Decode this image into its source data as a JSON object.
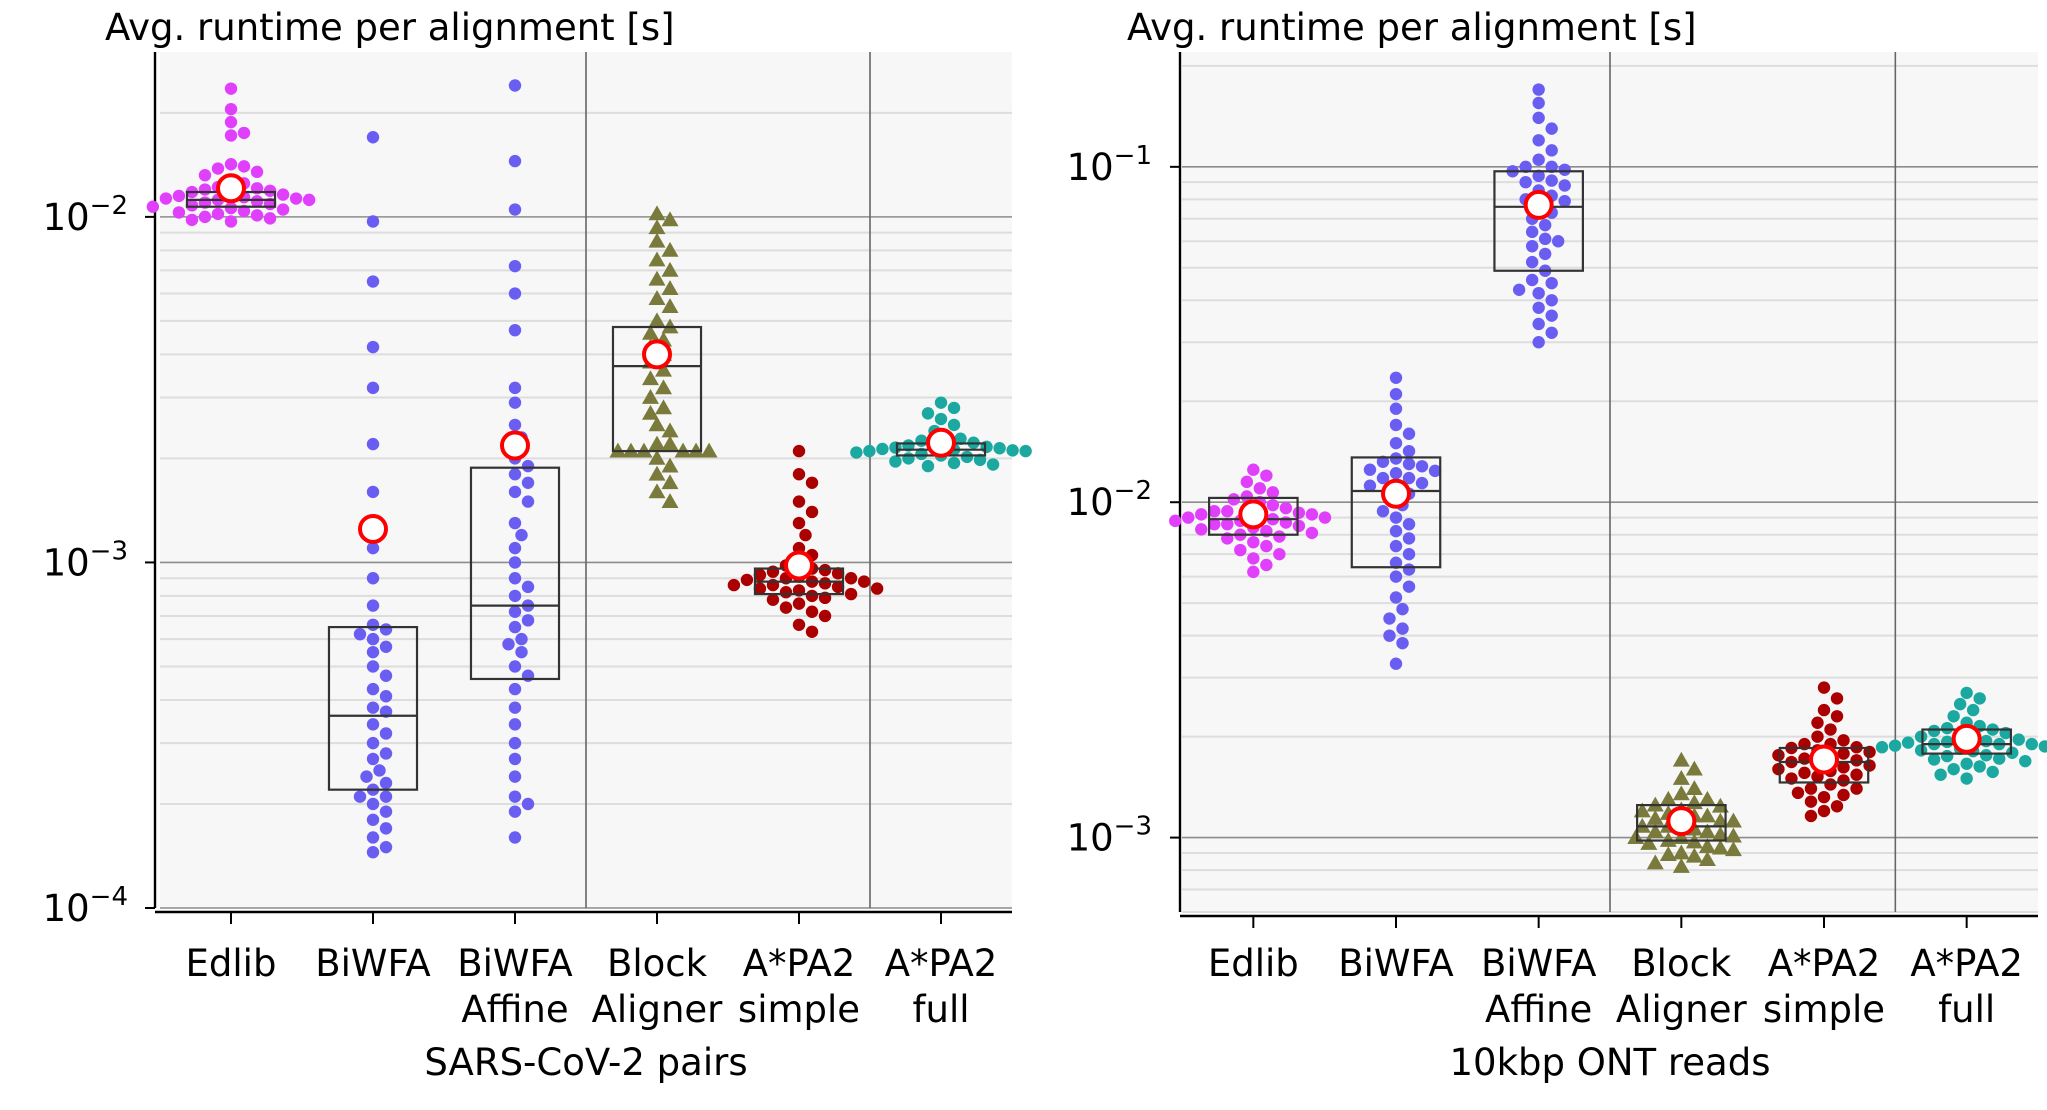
{
  "colors": {
    "panel_bg": "#f7f7f7",
    "grid_major": "#8c8c8c",
    "grid_minor": "#dddddd",
    "box_stroke": "#333333",
    "mean_fill": "#ffffff",
    "mean_stroke": "#ff0000"
  },
  "chart_data": [
    {
      "type": "swarm-box",
      "ylabel": "Avg. runtime per alignment [s]",
      "xlabel": "SARS-CoV-2 pairs",
      "yscale": "log",
      "ylim": [
        0.0001,
        0.03
      ],
      "yticks": [
        {
          "base": "10",
          "exp": "−4",
          "value": 0.0001
        },
        {
          "base": "10",
          "exp": "−3",
          "value": 0.001
        },
        {
          "base": "10",
          "exp": "−2",
          "value": 0.01
        }
      ],
      "group_separators_after": [
        3,
        5
      ],
      "categories": [
        {
          "label_lines": [
            "Edlib"
          ],
          "color": "#e040fb",
          "marker": "circle",
          "median": 0.0112,
          "q1": 0.0107,
          "q3": 0.0118,
          "mean": 0.0121,
          "points": [
            0.0235,
            0.0205,
            0.0188,
            0.0175,
            0.0172,
            0.0142,
            0.014,
            0.0138,
            0.0135,
            0.0132,
            0.0128,
            0.0125,
            0.0122,
            0.012,
            0.0118,
            0.0116,
            0.0115,
            0.0114,
            0.0113,
            0.0112,
            0.0111,
            0.011,
            0.0109,
            0.0108,
            0.0107,
            0.0106,
            0.0105,
            0.0103,
            0.0102,
            0.0101,
            0.01,
            0.0098,
            0.0097,
            0.0099,
            0.0104,
            0.0112,
            0.0113,
            0.0116,
            0.0119,
            0.0121
          ]
        },
        {
          "label_lines": [
            "BiWFA"
          ],
          "color": "#6a5ef2",
          "marker": "circle",
          "median": 0.00036,
          "q1": 0.00022,
          "q3": 0.00065,
          "mean": 0.00125,
          "points": [
            0.017,
            0.0097,
            0.0065,
            0.0042,
            0.0032,
            0.0022,
            0.0016,
            0.0011,
            0.0009,
            0.00075,
            0.00066,
            0.00064,
            0.00062,
            0.0006,
            0.00057,
            0.00055,
            0.0005,
            0.00047,
            0.00043,
            0.00041,
            0.00038,
            0.00037,
            0.00034,
            0.00032,
            0.0003,
            0.00028,
            0.00027,
            0.00025,
            0.00024,
            0.00023,
            0.00022,
            0.00021,
            0.0002,
            0.00019,
            0.00018,
            0.00017,
            0.00016,
            0.00015,
            0.000145,
            0.00021
          ]
        },
        {
          "label_lines": [
            "BiWFA",
            "Affine"
          ],
          "color": "#6a5ef2",
          "marker": "circle",
          "median": 0.00075,
          "q1": 0.00046,
          "q3": 0.00188,
          "mean": 0.00218,
          "points": [
            0.024,
            0.0145,
            0.0105,
            0.0072,
            0.006,
            0.0047,
            0.0032,
            0.0029,
            0.0025,
            0.0023,
            0.002,
            0.0019,
            0.0018,
            0.0017,
            0.0016,
            0.0015,
            0.0013,
            0.0012,
            0.0011,
            0.001,
            0.0009,
            0.00085,
            0.0008,
            0.00075,
            0.00072,
            0.00068,
            0.00065,
            0.0006,
            0.00058,
            0.00055,
            0.0005,
            0.00047,
            0.00043,
            0.00038,
            0.00034,
            0.0003,
            0.00027,
            0.00024,
            0.00021,
            0.00019,
            0.00016,
            0.0002
          ]
        },
        {
          "label_lines": [
            "Block",
            "Aligner"
          ],
          "color": "#7a7a3c",
          "marker": "triangle",
          "median": 0.0037,
          "q1": 0.0021,
          "q3": 0.0048,
          "mean": 0.004,
          "points": [
            0.0102,
            0.0098,
            0.0093,
            0.0085,
            0.008,
            0.0075,
            0.007,
            0.0066,
            0.0062,
            0.0058,
            0.0055,
            0.005,
            0.0048,
            0.0046,
            0.0044,
            0.0042,
            0.004,
            0.0038,
            0.0036,
            0.0034,
            0.0032,
            0.003,
            0.0028,
            0.0027,
            0.0025,
            0.0024,
            0.0022,
            0.0021,
            0.0021,
            0.0021,
            0.0021,
            0.002,
            0.0019,
            0.0018,
            0.0017,
            0.0016,
            0.0015,
            0.0022,
            0.0021,
            0.0021
          ]
        },
        {
          "label_lines": [
            "A*PA2",
            "simple"
          ],
          "color": "#aa0000",
          "marker": "circle",
          "median": 0.00088,
          "q1": 0.00081,
          "q3": 0.00096,
          "mean": 0.00098,
          "points": [
            0.0021,
            0.0018,
            0.0017,
            0.0015,
            0.0014,
            0.0013,
            0.0012,
            0.0011,
            0.00105,
            0.001,
            0.00098,
            0.00096,
            0.00095,
            0.00094,
            0.00093,
            0.00092,
            0.00091,
            0.0009,
            0.00089,
            0.00088,
            0.00087,
            0.00086,
            0.00085,
            0.00084,
            0.00083,
            0.00082,
            0.00081,
            0.0008,
            0.00079,
            0.00078,
            0.00076,
            0.00074,
            0.00072,
            0.0007,
            0.00066,
            0.00063,
            0.00088,
            0.00086,
            0.00084,
            0.0009
          ]
        },
        {
          "label_lines": [
            "A*PA2",
            "full"
          ],
          "color": "#1aa8a0",
          "marker": "circle",
          "median": 0.00212,
          "q1": 0.00204,
          "q3": 0.00221,
          "mean": 0.00222,
          "points": [
            0.0029,
            0.0028,
            0.0027,
            0.0026,
            0.0025,
            0.0024,
            0.0023,
            0.00228,
            0.00225,
            0.00222,
            0.0022,
            0.00218,
            0.00215,
            0.00213,
            0.00211,
            0.0021,
            0.00208,
            0.00206,
            0.00204,
            0.00202,
            0.002,
            0.00198,
            0.00196,
            0.00194,
            0.00192,
            0.0019,
            0.00212,
            0.00214,
            0.00216,
            0.0021
          ]
        }
      ]
    },
    {
      "type": "swarm-box",
      "ylabel": "Avg. runtime per alignment [s]",
      "xlabel": "10kbp ONT reads",
      "yscale": "log",
      "ylim": [
        0.0006,
        0.22
      ],
      "yticks": [
        {
          "base": "10",
          "exp": "−3",
          "value": 0.001
        },
        {
          "base": "10",
          "exp": "−2",
          "value": 0.01
        },
        {
          "base": "10",
          "exp": "−1",
          "value": 0.1
        }
      ],
      "group_separators_after": [
        3,
        5
      ],
      "categories": [
        {
          "label_lines": [
            "Edlib"
          ],
          "color": "#e040fb",
          "marker": "circle",
          "median": 0.0089,
          "q1": 0.008,
          "q3": 0.0103,
          "mean": 0.0092,
          "points": [
            0.0125,
            0.012,
            0.0115,
            0.011,
            0.0107,
            0.0104,
            0.0102,
            0.01,
            0.0098,
            0.0096,
            0.0094,
            0.0093,
            0.0092,
            0.0091,
            0.009,
            0.0089,
            0.0088,
            0.0087,
            0.0086,
            0.0085,
            0.0084,
            0.0083,
            0.0082,
            0.0081,
            0.008,
            0.0079,
            0.0078,
            0.0076,
            0.0074,
            0.0072,
            0.007,
            0.0068,
            0.0065,
            0.0062,
            0.009,
            0.0088,
            0.0092,
            0.0094,
            0.0086,
            0.0095
          ]
        },
        {
          "label_lines": [
            "BiWFA"
          ],
          "color": "#6a5ef2",
          "marker": "circle",
          "median": 0.0108,
          "q1": 0.0064,
          "q3": 0.0136,
          "mean": 0.0106,
          "points": [
            0.0235,
            0.021,
            0.019,
            0.017,
            0.016,
            0.015,
            0.0142,
            0.0135,
            0.013,
            0.0125,
            0.0122,
            0.0118,
            0.0114,
            0.011,
            0.0106,
            0.0102,
            0.0098,
            0.0094,
            0.009,
            0.0086,
            0.0082,
            0.0078,
            0.0074,
            0.007,
            0.0066,
            0.0063,
            0.006,
            0.0056,
            0.0052,
            0.0048,
            0.0045,
            0.0042,
            0.004,
            0.0038,
            0.0033,
            0.0112,
            0.0118,
            0.0124,
            0.0128,
            0.0132
          ]
        },
        {
          "label_lines": [
            "BiWFA",
            "Affine"
          ],
          "color": "#6a5ef2",
          "marker": "circle",
          "median": 0.076,
          "q1": 0.049,
          "q3": 0.097,
          "mean": 0.077,
          "points": [
            0.17,
            0.155,
            0.14,
            0.13,
            0.12,
            0.112,
            0.105,
            0.1,
            0.097,
            0.094,
            0.091,
            0.088,
            0.085,
            0.082,
            0.079,
            0.076,
            0.073,
            0.07,
            0.067,
            0.064,
            0.061,
            0.058,
            0.055,
            0.052,
            0.049,
            0.046,
            0.043,
            0.04,
            0.038,
            0.036,
            0.034,
            0.032,
            0.03,
            0.042,
            0.045,
            0.06,
            0.08,
            0.09,
            0.098,
            0.1
          ]
        },
        {
          "label_lines": [
            "Block",
            "Aligner"
          ],
          "color": "#7a7a3c",
          "marker": "triangle",
          "median": 0.00108,
          "q1": 0.00098,
          "q3": 0.00125,
          "mean": 0.00112,
          "points": [
            0.0017,
            0.0016,
            0.0015,
            0.0014,
            0.00135,
            0.0013,
            0.00127,
            0.00124,
            0.00121,
            0.00118,
            0.00116,
            0.00114,
            0.00112,
            0.0011,
            0.00108,
            0.00106,
            0.00104,
            0.00102,
            0.001,
            0.00098,
            0.00096,
            0.00094,
            0.00092,
            0.0009,
            0.00088,
            0.00086,
            0.00084,
            0.00082,
            0.001,
            0.00104,
            0.00108,
            0.00112,
            0.00116,
            0.0012,
            0.00097,
            0.00093,
            0.00089,
            0.00125,
            0.0013,
            0.00101
          ]
        },
        {
          "label_lines": [
            "A*PA2",
            "simple"
          ],
          "color": "#aa0000",
          "marker": "circle",
          "median": 0.00168,
          "q1": 0.00146,
          "q3": 0.00185,
          "mean": 0.00171,
          "points": [
            0.0028,
            0.0026,
            0.0024,
            0.0023,
            0.0022,
            0.0021,
            0.002,
            0.00195,
            0.0019,
            0.00185,
            0.0018,
            0.00176,
            0.00172,
            0.00168,
            0.00164,
            0.0016,
            0.00156,
            0.00152,
            0.00148,
            0.00144,
            0.0014,
            0.00136,
            0.00132,
            0.00128,
            0.00124,
            0.0012,
            0.00116,
            0.0017,
            0.00174,
            0.00166,
            0.00162,
            0.00178,
            0.00158,
            0.00182,
            0.00154,
            0.0015,
            0.0019,
            0.0014,
            0.00134,
            0.00186
          ]
        },
        {
          "label_lines": [
            "A*PA2",
            "full"
          ],
          "color": "#1aa8a0",
          "marker": "circle",
          "median": 0.0019,
          "q1": 0.00178,
          "q3": 0.0021,
          "mean": 0.00197,
          "points": [
            0.0027,
            0.0026,
            0.0025,
            0.0024,
            0.0023,
            0.0022,
            0.00215,
            0.0021,
            0.00205,
            0.002,
            0.00196,
            0.00193,
            0.0019,
            0.00187,
            0.00184,
            0.00181,
            0.00178,
            0.00175,
            0.00172,
            0.00169,
            0.00166,
            0.00163,
            0.0016,
            0.00157,
            0.00154,
            0.0015,
            0.0019,
            0.00194,
            0.00198,
            0.00186,
            0.00182,
            0.00202,
            0.00179,
            0.00208,
            0.00212,
            0.00176,
            0.00171,
            0.0019,
            0.00188,
            0.00192
          ]
        }
      ]
    }
  ]
}
